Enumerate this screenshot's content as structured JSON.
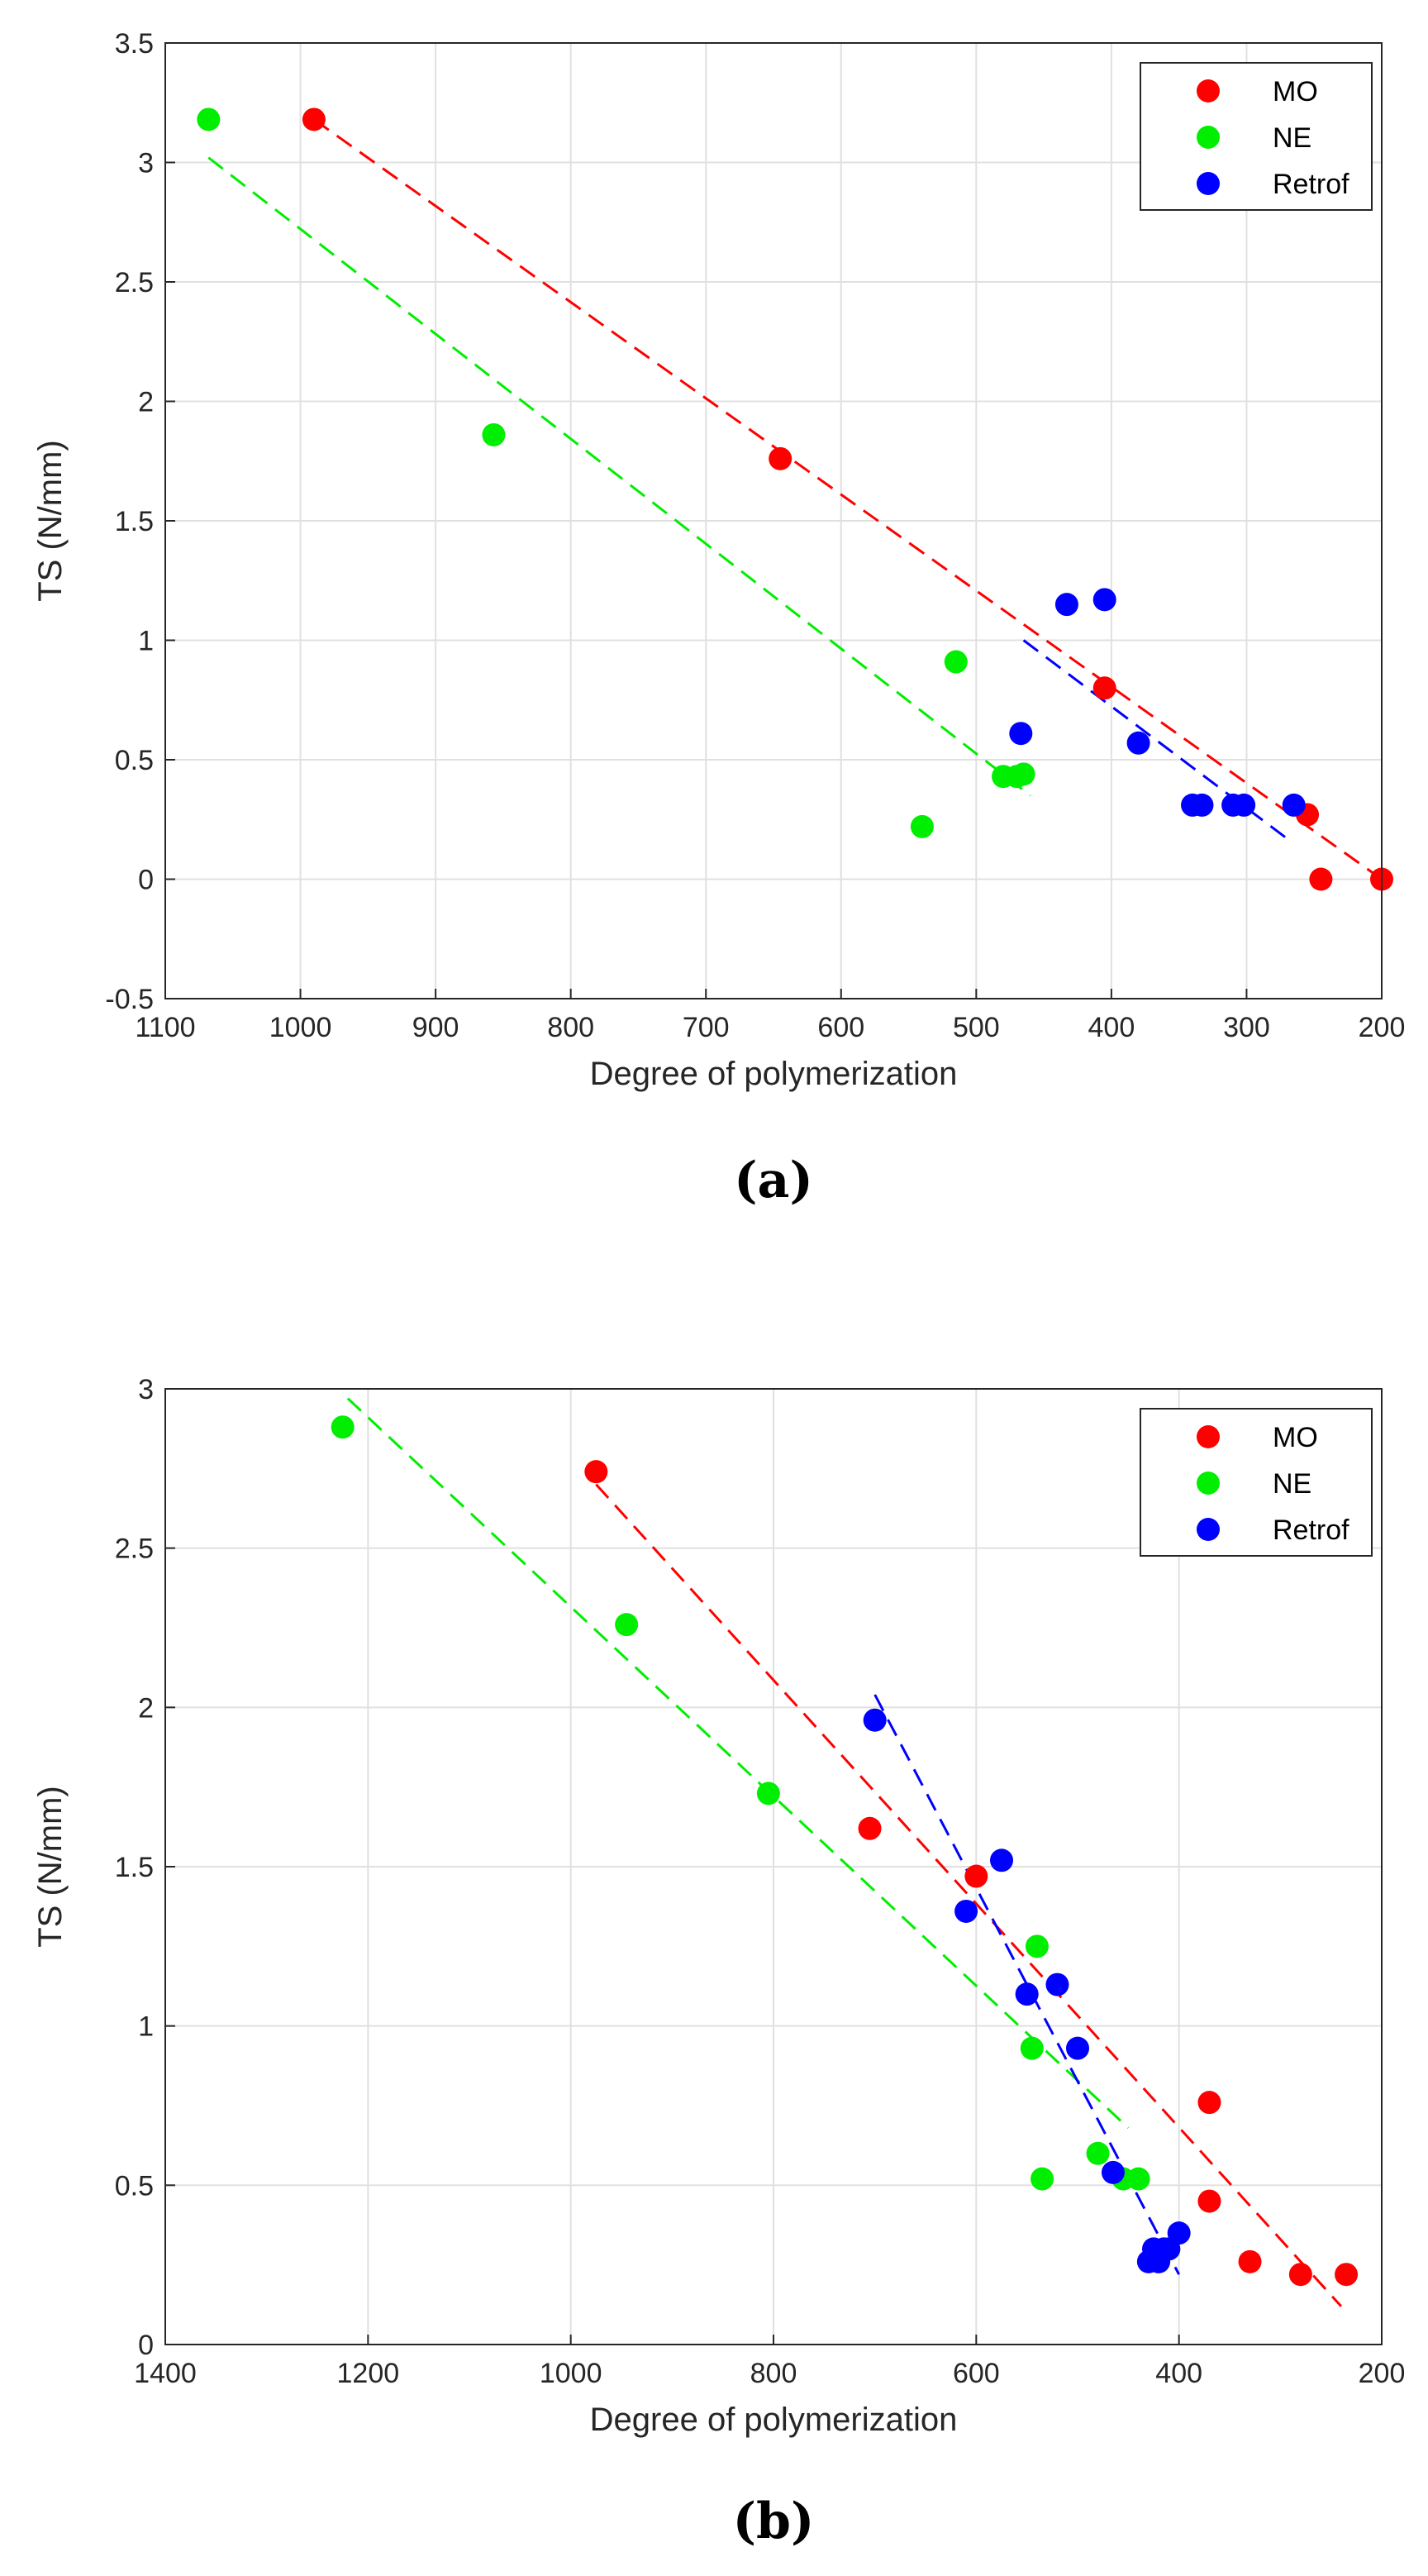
{
  "colors": {
    "MO": "#ff0000",
    "NE": "#00ee00",
    "Retrof": "#0000ff"
  },
  "chart_data": [
    {
      "type": "scatter",
      "panel_label": "(a)",
      "xlabel": "Degree of polymerization",
      "ylabel": "TS (N/mm)",
      "xlim": [
        200,
        1100
      ],
      "x_reversed": true,
      "ylim": [
        -0.5,
        3.5
      ],
      "xticks": [
        1100,
        1000,
        900,
        800,
        700,
        600,
        500,
        400,
        300,
        200
      ],
      "xtick_labels": [
        "1100",
        "1000",
        "900",
        "800",
        "700",
        "600",
        "500",
        "400",
        "300",
        "200"
      ],
      "yticks": [
        -0.5,
        0,
        0.5,
        1,
        1.5,
        2,
        2.5,
        3,
        3.5
      ],
      "ytick_labels": [
        "-0.5",
        "0",
        "0.5",
        "1",
        "1.5",
        "2",
        "2.5",
        "3",
        "3.5"
      ],
      "grid": true,
      "legend_position": "top-right",
      "series": [
        {
          "name": "MO",
          "color_key": "MO",
          "points": [
            [
              990,
              3.18
            ],
            [
              645,
              1.76
            ],
            [
              405,
              0.8
            ],
            [
              255,
              0.27
            ],
            [
              245,
              0.0
            ],
            [
              200,
              0.0
            ]
          ],
          "fit": [
            [
              990,
              3.18
            ],
            [
              200,
              0.0
            ]
          ]
        },
        {
          "name": "NE",
          "color_key": "NE",
          "points": [
            [
              1068,
              3.18
            ],
            [
              857,
              1.86
            ],
            [
              515,
              0.91
            ],
            [
              540,
              0.22
            ],
            [
              480,
              0.43
            ],
            [
              470,
              0.43
            ],
            [
              465,
              0.44
            ]
          ],
          "fit": [
            [
              1068,
              3.02
            ],
            [
              460,
              0.35
            ]
          ]
        },
        {
          "name": "Retrof",
          "color_key": "Retrof",
          "points": [
            [
              433,
              1.15
            ],
            [
              405,
              1.17
            ],
            [
              467,
              0.61
            ],
            [
              380,
              0.57
            ],
            [
              340,
              0.31
            ],
            [
              333,
              0.31
            ],
            [
              310,
              0.31
            ],
            [
              302,
              0.31
            ],
            [
              265,
              0.31
            ]
          ],
          "fit": [
            [
              465,
              1.0
            ],
            [
              270,
              0.17
            ]
          ]
        }
      ]
    },
    {
      "type": "scatter",
      "panel_label": "(b)",
      "xlabel": "Degree of polymerization",
      "ylabel": "TS (N/mm)",
      "xlim": [
        200,
        1400
      ],
      "x_reversed": true,
      "ylim": [
        0,
        3
      ],
      "xticks": [
        1400,
        1200,
        1000,
        800,
        600,
        400,
        200
      ],
      "xtick_labels": [
        "1400",
        "1200",
        "1000",
        "800",
        "600",
        "400",
        "200"
      ],
      "yticks": [
        0,
        0.5,
        1,
        1.5,
        2,
        2.5,
        3
      ],
      "ytick_labels": [
        "0",
        "0.5",
        "1",
        "1.5",
        "2",
        "2.5",
        "3"
      ],
      "grid": true,
      "legend_position": "top-right",
      "series": [
        {
          "name": "MO",
          "color_key": "MO",
          "points": [
            [
              975,
              2.74
            ],
            [
              705,
              1.62
            ],
            [
              600,
              1.47
            ],
            [
              370,
              0.76
            ],
            [
              370,
              0.45
            ],
            [
              330,
              0.26
            ],
            [
              280,
              0.22
            ],
            [
              235,
              0.22
            ]
          ],
          "fit": [
            [
              975,
              2.7
            ],
            [
              240,
              0.12
            ]
          ]
        },
        {
          "name": "NE",
          "color_key": "NE",
          "points": [
            [
              1225,
              2.88
            ],
            [
              945,
              2.26
            ],
            [
              805,
              1.73
            ],
            [
              540,
              1.25
            ],
            [
              545,
              0.93
            ],
            [
              535,
              0.52
            ],
            [
              480,
              0.6
            ],
            [
              455,
              0.52
            ],
            [
              440,
              0.52
            ]
          ],
          "fit": [
            [
              1220,
              2.97
            ],
            [
              450,
              0.68
            ]
          ]
        },
        {
          "name": "Retrof",
          "color_key": "Retrof",
          "points": [
            [
              700,
              1.96
            ],
            [
              575,
              1.52
            ],
            [
              610,
              1.36
            ],
            [
              550,
              1.1
            ],
            [
              520,
              1.13
            ],
            [
              500,
              0.93
            ],
            [
              465,
              0.54
            ],
            [
              430,
              0.26
            ],
            [
              425,
              0.3
            ],
            [
              420,
              0.26
            ],
            [
              415,
              0.3
            ],
            [
              410,
              0.3
            ],
            [
              400,
              0.35
            ]
          ],
          "fit": [
            [
              700,
              2.04
            ],
            [
              400,
              0.22
            ]
          ]
        }
      ]
    }
  ]
}
